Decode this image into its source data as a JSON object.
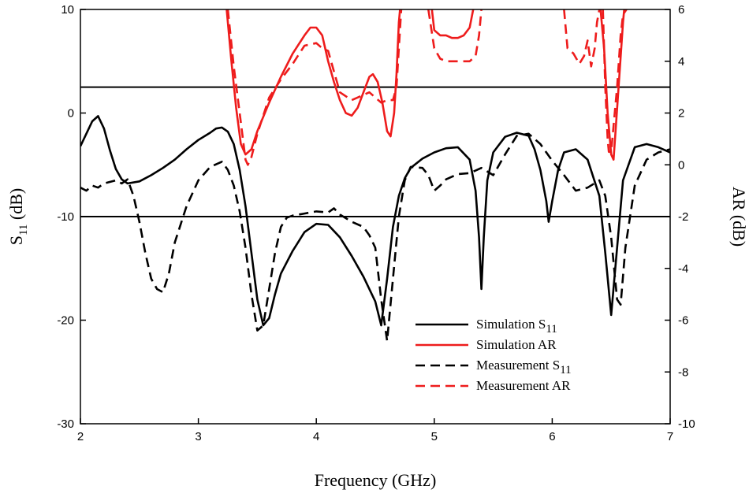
{
  "chart_data": {
    "type": "line",
    "xlabel": "Frequency (GHz)",
    "ylabel_left": {
      "main": "S",
      "sub": "11",
      "unit": " (dB)"
    },
    "ylabel_right": "AR (dB)",
    "xlim": [
      2,
      7
    ],
    "ylim_left": [
      -30,
      10
    ],
    "ylim_right": [
      -10,
      6
    ],
    "xticks": [
      "2",
      "3",
      "4",
      "5",
      "6",
      "7"
    ],
    "yticks_left": [
      "-30",
      "-20",
      "-10",
      "0",
      "10"
    ],
    "yticks_right": [
      "-10",
      "-8",
      "-6",
      "-4",
      "-2",
      "0",
      "2",
      "4",
      "6"
    ],
    "reference_lines": [
      {
        "axis": "left",
        "value": -10
      },
      {
        "axis": "right",
        "value": 3
      }
    ],
    "legend": {
      "position": "lower-right",
      "entries": [
        {
          "main": "Simulation S",
          "sub": "11",
          "color": "#000000",
          "dash": "solid"
        },
        {
          "main": "Simulation AR",
          "sub": "",
          "color": "#ee1c1c",
          "dash": "solid"
        },
        {
          "main": "Measurement S",
          "sub": "11",
          "color": "#000000",
          "dash": "dashed"
        },
        {
          "main": "Measurement AR",
          "sub": "",
          "color": "#ee1c1c",
          "dash": "dashed"
        }
      ]
    },
    "series": [
      {
        "name": "Simulation S11",
        "axis": "left",
        "color": "#000000",
        "dash": "solid",
        "points": [
          [
            2.0,
            -3.2
          ],
          [
            2.05,
            -2.0
          ],
          [
            2.1,
            -0.8
          ],
          [
            2.15,
            -0.3
          ],
          [
            2.2,
            -1.5
          ],
          [
            2.25,
            -3.6
          ],
          [
            2.3,
            -5.4
          ],
          [
            2.35,
            -6.4
          ],
          [
            2.4,
            -6.8
          ],
          [
            2.5,
            -6.6
          ],
          [
            2.6,
            -6.0
          ],
          [
            2.7,
            -5.3
          ],
          [
            2.8,
            -4.5
          ],
          [
            2.9,
            -3.5
          ],
          [
            3.0,
            -2.6
          ],
          [
            3.1,
            -1.9
          ],
          [
            3.15,
            -1.5
          ],
          [
            3.2,
            -1.4
          ],
          [
            3.25,
            -1.8
          ],
          [
            3.3,
            -3.0
          ],
          [
            3.35,
            -5.5
          ],
          [
            3.4,
            -9.0
          ],
          [
            3.45,
            -13.5
          ],
          [
            3.5,
            -18.0
          ],
          [
            3.55,
            -20.5
          ],
          [
            3.6,
            -19.8
          ],
          [
            3.65,
            -17.5
          ],
          [
            3.7,
            -15.5
          ],
          [
            3.8,
            -13.3
          ],
          [
            3.9,
            -11.5
          ],
          [
            4.0,
            -10.7
          ],
          [
            4.1,
            -10.8
          ],
          [
            4.2,
            -12.0
          ],
          [
            4.3,
            -13.8
          ],
          [
            4.4,
            -15.8
          ],
          [
            4.5,
            -18.2
          ],
          [
            4.55,
            -20.5
          ],
          [
            4.6,
            -16.0
          ],
          [
            4.65,
            -11.0
          ],
          [
            4.7,
            -8.0
          ],
          [
            4.75,
            -6.3
          ],
          [
            4.8,
            -5.3
          ],
          [
            4.9,
            -4.4
          ],
          [
            5.0,
            -3.8
          ],
          [
            5.1,
            -3.4
          ],
          [
            5.2,
            -3.3
          ],
          [
            5.3,
            -4.5
          ],
          [
            5.35,
            -7.5
          ],
          [
            5.38,
            -12.0
          ],
          [
            5.4,
            -17.0
          ],
          [
            5.42,
            -12.0
          ],
          [
            5.45,
            -6.5
          ],
          [
            5.5,
            -3.8
          ],
          [
            5.6,
            -2.3
          ],
          [
            5.7,
            -1.9
          ],
          [
            5.8,
            -2.2
          ],
          [
            5.85,
            -3.5
          ],
          [
            5.9,
            -5.5
          ],
          [
            5.95,
            -8.5
          ],
          [
            5.97,
            -10.5
          ],
          [
            6.0,
            -8.5
          ],
          [
            6.05,
            -5.5
          ],
          [
            6.1,
            -3.8
          ],
          [
            6.2,
            -3.5
          ],
          [
            6.3,
            -4.5
          ],
          [
            6.4,
            -8.0
          ],
          [
            6.45,
            -13.5
          ],
          [
            6.5,
            -19.5
          ],
          [
            6.55,
            -13.0
          ],
          [
            6.6,
            -6.5
          ],
          [
            6.7,
            -3.3
          ],
          [
            6.8,
            -3.0
          ],
          [
            6.9,
            -3.3
          ],
          [
            7.0,
            -3.8
          ]
        ]
      },
      {
        "name": "Measurement S11",
        "axis": "left",
        "color": "#000000",
        "dash": "dashed",
        "points": [
          [
            2.0,
            -7.2
          ],
          [
            2.05,
            -7.5
          ],
          [
            2.1,
            -7.0
          ],
          [
            2.15,
            -7.2
          ],
          [
            2.2,
            -6.8
          ],
          [
            2.3,
            -6.5
          ],
          [
            2.35,
            -6.8
          ],
          [
            2.4,
            -6.4
          ],
          [
            2.45,
            -8.0
          ],
          [
            2.5,
            -10.5
          ],
          [
            2.55,
            -13.5
          ],
          [
            2.6,
            -16.0
          ],
          [
            2.65,
            -17.0
          ],
          [
            2.7,
            -17.3
          ],
          [
            2.75,
            -15.5
          ],
          [
            2.8,
            -12.5
          ],
          [
            2.9,
            -9.0
          ],
          [
            3.0,
            -6.5
          ],
          [
            3.1,
            -5.2
          ],
          [
            3.2,
            -4.7
          ],
          [
            3.25,
            -5.5
          ],
          [
            3.3,
            -7.0
          ],
          [
            3.35,
            -9.5
          ],
          [
            3.4,
            -13.0
          ],
          [
            3.45,
            -17.5
          ],
          [
            3.5,
            -21.0
          ],
          [
            3.55,
            -20.5
          ],
          [
            3.6,
            -17.0
          ],
          [
            3.65,
            -13.5
          ],
          [
            3.7,
            -11.0
          ],
          [
            3.75,
            -10.1
          ],
          [
            3.8,
            -9.9
          ],
          [
            3.9,
            -9.7
          ],
          [
            4.0,
            -9.5
          ],
          [
            4.1,
            -9.6
          ],
          [
            4.15,
            -9.2
          ],
          [
            4.2,
            -9.8
          ],
          [
            4.3,
            -10.5
          ],
          [
            4.4,
            -11.0
          ],
          [
            4.45,
            -11.8
          ],
          [
            4.5,
            -13.0
          ],
          [
            4.55,
            -18.0
          ],
          [
            4.6,
            -22.0
          ],
          [
            4.65,
            -16.0
          ],
          [
            4.7,
            -10.0
          ],
          [
            4.75,
            -6.5
          ],
          [
            4.8,
            -5.2
          ],
          [
            4.9,
            -5.3
          ],
          [
            4.95,
            -6.0
          ],
          [
            5.0,
            -7.5
          ],
          [
            5.05,
            -7.0
          ],
          [
            5.1,
            -6.4
          ],
          [
            5.2,
            -5.9
          ],
          [
            5.3,
            -5.8
          ],
          [
            5.4,
            -5.3
          ],
          [
            5.5,
            -6.0
          ],
          [
            5.6,
            -4.0
          ],
          [
            5.7,
            -2.2
          ],
          [
            5.8,
            -2.0
          ],
          [
            5.9,
            -3.0
          ],
          [
            6.0,
            -4.6
          ],
          [
            6.1,
            -6.0
          ],
          [
            6.2,
            -7.5
          ],
          [
            6.3,
            -7.2
          ],
          [
            6.4,
            -6.5
          ],
          [
            6.45,
            -8.0
          ],
          [
            6.5,
            -12.0
          ],
          [
            6.55,
            -18.0
          ],
          [
            6.58,
            -18.5
          ],
          [
            6.62,
            -13.0
          ],
          [
            6.7,
            -7.0
          ],
          [
            6.8,
            -4.5
          ],
          [
            6.9,
            -3.8
          ],
          [
            7.0,
            -3.5
          ]
        ]
      },
      {
        "name": "Simulation AR",
        "axis": "right",
        "color": "#ee1c1c",
        "dash": "solid",
        "segments": [
          [
            [
              3.24,
              6.0
            ],
            [
              3.28,
              4.0
            ],
            [
              3.32,
              2.2
            ],
            [
              3.36,
              0.8
            ],
            [
              3.4,
              0.4
            ],
            [
              3.45,
              0.6
            ],
            [
              3.5,
              1.3
            ],
            [
              3.6,
              2.4
            ],
            [
              3.7,
              3.4
            ],
            [
              3.8,
              4.3
            ],
            [
              3.9,
              5.0
            ],
            [
              3.95,
              5.3
            ],
            [
              4.0,
              5.3
            ],
            [
              4.05,
              5.0
            ],
            [
              4.1,
              4.0
            ],
            [
              4.15,
              3.2
            ],
            [
              4.2,
              2.5
            ],
            [
              4.25,
              2.0
            ],
            [
              4.3,
              1.9
            ],
            [
              4.35,
              2.2
            ],
            [
              4.4,
              2.8
            ],
            [
              4.45,
              3.4
            ],
            [
              4.48,
              3.5
            ],
            [
              4.52,
              3.2
            ],
            [
              4.56,
              2.4
            ],
            [
              4.6,
              1.3
            ],
            [
              4.63,
              1.1
            ],
            [
              4.66,
              2.0
            ],
            [
              4.68,
              3.5
            ],
            [
              4.7,
              5.5
            ],
            [
              4.71,
              6.0
            ]
          ],
          [
            [
              4.98,
              6.0
            ],
            [
              5.0,
              5.2
            ],
            [
              5.05,
              5.0
            ],
            [
              5.1,
              5.0
            ],
            [
              5.15,
              4.9
            ],
            [
              5.2,
              4.9
            ],
            [
              5.25,
              5.0
            ],
            [
              5.3,
              5.3
            ],
            [
              5.33,
              6.0
            ]
          ],
          [
            [
              6.41,
              6.0
            ],
            [
              6.44,
              4.5
            ],
            [
              6.47,
              2.0
            ],
            [
              6.5,
              0.4
            ],
            [
              6.52,
              0.2
            ],
            [
              6.54,
              1.5
            ],
            [
              6.57,
              3.5
            ],
            [
              6.6,
              5.5
            ],
            [
              6.61,
              6.0
            ]
          ]
        ]
      },
      {
        "name": "Measurement AR",
        "axis": "right",
        "color": "#ee1c1c",
        "dash": "dashed",
        "segments": [
          [
            [
              3.25,
              6.0
            ],
            [
              3.3,
              3.8
            ],
            [
              3.35,
              2.0
            ],
            [
              3.4,
              0.2
            ],
            [
              3.42,
              0.0
            ],
            [
              3.45,
              0.3
            ],
            [
              3.5,
              1.2
            ],
            [
              3.6,
              2.6
            ],
            [
              3.7,
              3.3
            ],
            [
              3.8,
              3.9
            ],
            [
              3.9,
              4.6
            ],
            [
              4.0,
              4.7
            ],
            [
              4.05,
              4.5
            ],
            [
              4.1,
              4.4
            ],
            [
              4.15,
              3.6
            ],
            [
              4.2,
              2.8
            ],
            [
              4.3,
              2.5
            ],
            [
              4.35,
              2.6
            ],
            [
              4.4,
              2.7
            ],
            [
              4.45,
              2.8
            ],
            [
              4.5,
              2.6
            ],
            [
              4.55,
              2.4
            ],
            [
              4.6,
              2.5
            ],
            [
              4.65,
              2.5
            ],
            [
              4.68,
              3.0
            ],
            [
              4.7,
              4.5
            ],
            [
              4.72,
              6.0
            ]
          ],
          [
            [
              4.95,
              6.0
            ],
            [
              5.0,
              4.5
            ],
            [
              5.05,
              4.1
            ],
            [
              5.1,
              4.0
            ],
            [
              5.2,
              4.0
            ],
            [
              5.3,
              4.0
            ],
            [
              5.35,
              4.2
            ],
            [
              5.38,
              5.0
            ],
            [
              5.4,
              6.0
            ]
          ],
          [
            [
              6.1,
              6.0
            ],
            [
              6.13,
              4.5
            ],
            [
              6.18,
              4.3
            ],
            [
              6.23,
              3.9
            ],
            [
              6.27,
              4.2
            ],
            [
              6.3,
              4.8
            ],
            [
              6.33,
              3.8
            ],
            [
              6.36,
              4.5
            ],
            [
              6.38,
              5.5
            ],
            [
              6.4,
              6.0
            ]
          ],
          [
            [
              6.43,
              6.0
            ],
            [
              6.45,
              3.0
            ],
            [
              6.47,
              1.0
            ],
            [
              6.48,
              0.5
            ],
            [
              6.5,
              0.5
            ],
            [
              6.52,
              1.5
            ],
            [
              6.55,
              3.0
            ],
            [
              6.58,
              5.0
            ],
            [
              6.6,
              5.8
            ],
            [
              6.63,
              6.0
            ]
          ]
        ]
      }
    ]
  }
}
